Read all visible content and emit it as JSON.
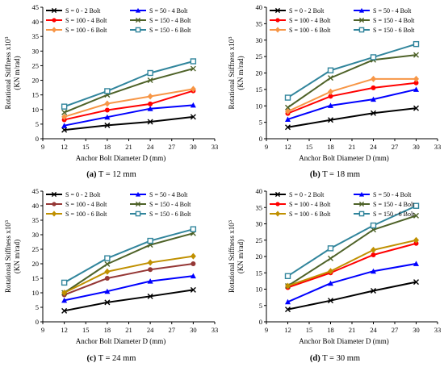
{
  "chart_data": [
    {
      "type": "line",
      "caption_letter": "(a)",
      "caption_text": " T = 12 mm",
      "xlabel": "Anchor Bolt Diameter D (mm)",
      "ylabel_line1": "Rotational Stiffness x10",
      "ylabel_sup": "3",
      "ylabel_line2": "(KN m/rad)",
      "xlim": [
        9,
        33
      ],
      "ylim": [
        0,
        45
      ],
      "x_ticks": [
        "9",
        "12",
        "15",
        "18",
        "21",
        "24",
        "27",
        "30",
        "33"
      ],
      "y_ticks": [
        "0",
        "5",
        "10",
        "15",
        "20",
        "25",
        "30",
        "35",
        "40",
        "45"
      ],
      "x": [
        12,
        18,
        24,
        30
      ],
      "legend_position": "top-inside",
      "series": [
        {
          "name": "S = 0 - 2 Bolt",
          "color": "#000000",
          "marker": "x",
          "values": [
            3,
            4.6,
            5.8,
            7.5
          ]
        },
        {
          "name": "S = 50 - 4 Bolt",
          "color": "#0000ff",
          "marker": "triangle",
          "values": [
            4.5,
            7.4,
            10.3,
            11.5
          ]
        },
        {
          "name": "S = 100 - 4 Bolt",
          "color": "#ff0000",
          "marker": "circle",
          "values": [
            6.5,
            9.8,
            11.9,
            16.4
          ]
        },
        {
          "name": "S = 150 - 4 Bolt",
          "color": "#4e6228",
          "marker": "x",
          "values": [
            9,
            15,
            20,
            24
          ]
        },
        {
          "name": "S = 100 - 6 Bolt",
          "color": "#f79646",
          "marker": "diamond",
          "values": [
            7.5,
            12,
            14.5,
            17
          ]
        },
        {
          "name": "S = 150 - 6 Bolt",
          "color": "#31859c",
          "marker": "square",
          "values": [
            11,
            16.3,
            22.5,
            26.5
          ]
        }
      ]
    },
    {
      "type": "line",
      "caption_letter": "(b)",
      "caption_text": " T = 18 mm",
      "xlabel": "Anchor Bolt Diameter D (mm)",
      "ylabel_line1": "Rotational Stiffness x10",
      "ylabel_sup": "3",
      "ylabel_line2": "(KN m/rad)",
      "xlim": [
        9,
        33
      ],
      "ylim": [
        0,
        40
      ],
      "x_ticks": [
        "9",
        "12",
        "15",
        "18",
        "21",
        "24",
        "27",
        "30",
        "33"
      ],
      "y_ticks": [
        "0",
        "5",
        "10",
        "15",
        "20",
        "25",
        "30",
        "35",
        "40"
      ],
      "x": [
        12,
        18,
        24,
        30
      ],
      "legend_position": "top-inside",
      "series": [
        {
          "name": "S = 0 - 2 Bolt",
          "color": "#000000",
          "marker": "x",
          "values": [
            3.5,
            5.7,
            7.8,
            9.3
          ]
        },
        {
          "name": "S = 50 - 4 Bolt",
          "color": "#0000ff",
          "marker": "triangle",
          "values": [
            5.9,
            10.1,
            12,
            15
          ]
        },
        {
          "name": "S = 100 - 4 Bolt",
          "color": "#ff0000",
          "marker": "circle",
          "values": [
            7.7,
            12.9,
            15.5,
            17
          ]
        },
        {
          "name": "S = 150 - 4 Bolt",
          "color": "#4e6228",
          "marker": "x",
          "values": [
            9.5,
            18.5,
            24,
            25.5
          ]
        },
        {
          "name": "S = 100 - 6 Bolt",
          "color": "#f79646",
          "marker": "diamond",
          "values": [
            8.3,
            14.3,
            18.2,
            18.2
          ]
        },
        {
          "name": "S = 150 - 6 Bolt",
          "color": "#31859c",
          "marker": "square",
          "values": [
            12.5,
            20.8,
            24.8,
            28.8
          ]
        }
      ]
    },
    {
      "type": "line",
      "caption_letter": "(c)",
      "caption_text": " T = 24 mm",
      "xlabel": "Anchor Bolt Diameter D (mm)",
      "ylabel_line1": "Rotational Stiffness x10",
      "ylabel_sup": "3",
      "ylabel_line2": "(KN m/rad)",
      "xlim": [
        9,
        33
      ],
      "ylim": [
        0,
        45
      ],
      "x_ticks": [
        "9",
        "12",
        "15",
        "18",
        "21",
        "24",
        "27",
        "30",
        "33"
      ],
      "y_ticks": [
        "0",
        "5",
        "10",
        "15",
        "20",
        "25",
        "30",
        "35",
        "40",
        "45"
      ],
      "x": [
        12,
        18,
        24,
        30
      ],
      "legend_position": "top-inside",
      "series": [
        {
          "name": "S = 0 - 2 Bolt",
          "color": "#000000",
          "marker": "x",
          "values": [
            3.8,
            6.7,
            8.8,
            11
          ]
        },
        {
          "name": "S = 50 - 4 Bolt",
          "color": "#0000ff",
          "marker": "triangle",
          "values": [
            7.4,
            10.5,
            14,
            15.8
          ]
        },
        {
          "name": "S = 100 - 4 Bolt",
          "color": "#953735",
          "marker": "circle",
          "values": [
            9.3,
            15,
            18,
            20
          ]
        },
        {
          "name": "S = 150 - 4 Bolt",
          "color": "#4e6228",
          "marker": "x",
          "values": [
            10,
            19.9,
            26.5,
            30.5
          ]
        },
        {
          "name": "S = 100 - 6 Bolt",
          "color": "#c09000",
          "marker": "diamond",
          "values": [
            10,
            17.3,
            20.4,
            22.6
          ]
        },
        {
          "name": "S = 150 - 6 Bolt",
          "color": "#31859c",
          "marker": "square",
          "values": [
            13.5,
            21.9,
            27.9,
            31.9
          ]
        }
      ]
    },
    {
      "type": "line",
      "caption_letter": "(d)",
      "caption_text": " T = 30 mm",
      "xlabel": "Anchor Bolt Diameter D (mm)",
      "ylabel_line1": "Rotational Stiffness x10",
      "ylabel_sup": "3",
      "ylabel_line2": "(KN m/rad)",
      "xlim": [
        9,
        33
      ],
      "ylim": [
        0,
        40
      ],
      "x_ticks": [
        "9",
        "12",
        "15",
        "18",
        "21",
        "24",
        "27",
        "30",
        "33"
      ],
      "y_ticks": [
        "0",
        "5",
        "10",
        "15",
        "20",
        "25",
        "30",
        "35",
        "40"
      ],
      "x": [
        12,
        18,
        24,
        30
      ],
      "legend_position": "top-inside",
      "series": [
        {
          "name": "S = 0 - 2 Bolt",
          "color": "#000000",
          "marker": "x",
          "values": [
            3.8,
            6.5,
            9.5,
            12.2
          ]
        },
        {
          "name": "S = 50 - 4 Bolt",
          "color": "#0000ff",
          "marker": "triangle",
          "values": [
            6.1,
            11.8,
            15.5,
            17.8
          ]
        },
        {
          "name": "S = 100 - 4 Bolt",
          "color": "#ff0000",
          "marker": "circle",
          "values": [
            10.5,
            15,
            20.5,
            24
          ]
        },
        {
          "name": "S = 150 - 4 Bolt",
          "color": "#4e6228",
          "marker": "x",
          "values": [
            11,
            19.4,
            28.2,
            32.5
          ]
        },
        {
          "name": "S = 100 - 6 Bolt",
          "color": "#c09000",
          "marker": "diamond",
          "values": [
            11,
            15.5,
            22,
            25
          ]
        },
        {
          "name": "S = 150 - 6 Bolt",
          "color": "#31859c",
          "marker": "square",
          "values": [
            14,
            22.5,
            29.5,
            35.5
          ]
        }
      ]
    }
  ]
}
